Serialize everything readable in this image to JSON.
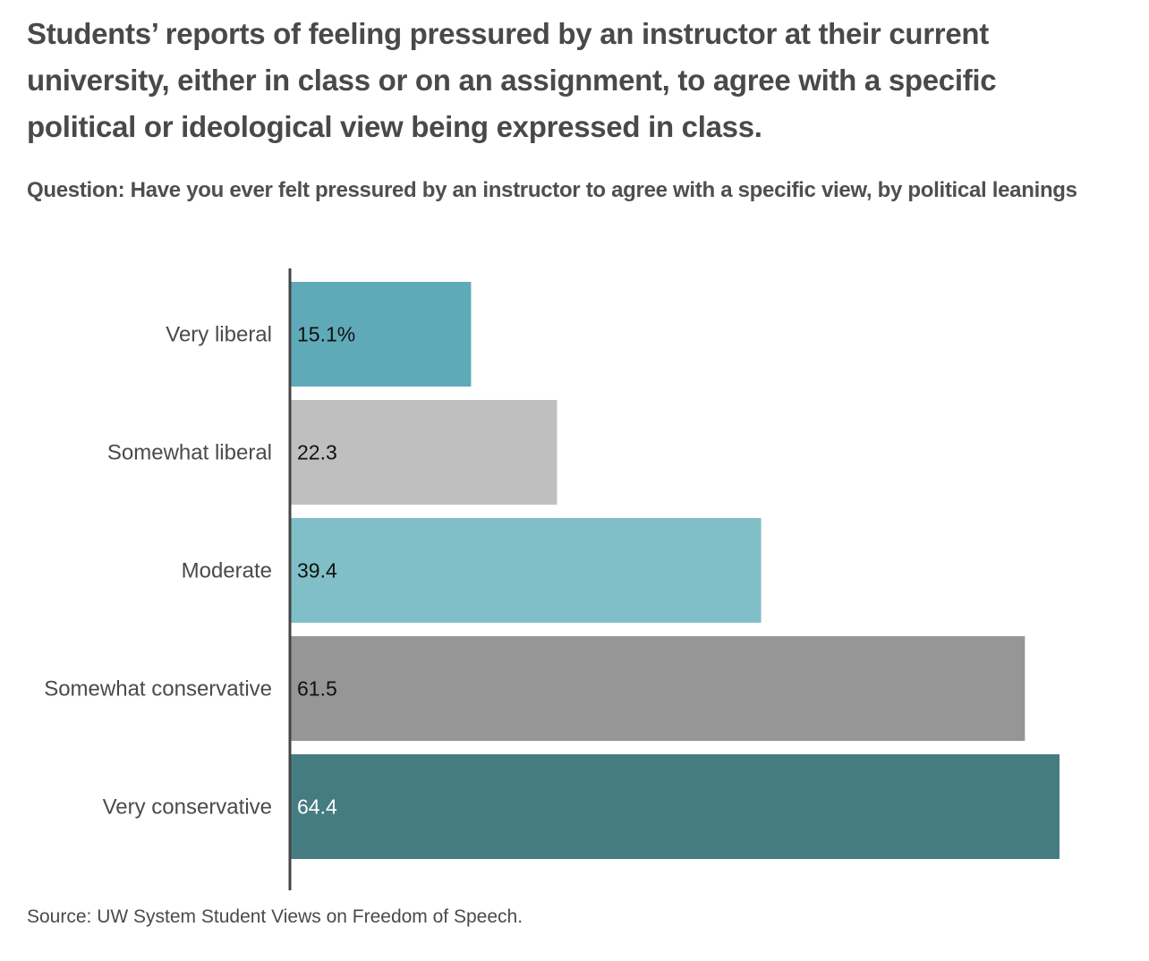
{
  "title": "Students’ reports of feeling pressured by an instructor at their current university, either in class or on  an assignment, to agree with a specific political or ideological view being expressed in class.",
  "subtitle": "Question: Have you ever felt pressured by an instructor to agree with a specific view, by political leanings",
  "source": "Source: UW System Student Views on  Freedom of Speech.",
  "chart_data": {
    "type": "bar",
    "orientation": "horizontal",
    "title": "Students’ reports of feeling pressured by an instructor at their current university, either in class or on  an assignment, to agree with a specific political or ideological view being expressed in class.",
    "subtitle": "Question: Have you ever felt pressured by an instructor to agree with a specific view, by political leanings",
    "xlabel": "",
    "ylabel": "",
    "unit": "%",
    "xlim": [
      0,
      70
    ],
    "grid": false,
    "legend": "none",
    "categories": [
      "Very liberal",
      "Somewhat liberal",
      "Moderate",
      "Somewhat conservative",
      "Very conservative"
    ],
    "values": [
      15.1,
      22.3,
      39.4,
      61.5,
      64.4
    ],
    "value_labels": [
      "15.1%",
      "22.3",
      "39.4",
      "61.5",
      "64.4"
    ],
    "colors": [
      "#5faab8",
      "#bfbfbf",
      "#80bfc8",
      "#969696",
      "#457c82"
    ],
    "label_colors": [
      "#111111",
      "#111111",
      "#111111",
      "#111111",
      "#ffffff"
    ]
  }
}
